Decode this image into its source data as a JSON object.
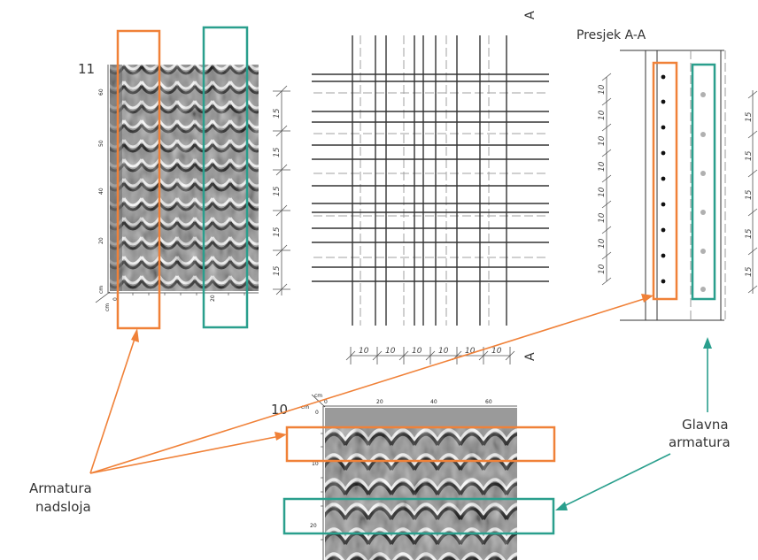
{
  "colors": {
    "overlay": "#f08138",
    "main": "#2a9f8d",
    "line": "#222222",
    "dash": "#999999"
  },
  "scan_top": {
    "number": "11",
    "ticks_left": [
      "60",
      "50",
      "40",
      "20",
      "cm"
    ],
    "ticks_bottom": [
      "cm",
      "0",
      "20"
    ]
  },
  "scan_bottom": {
    "number": "10",
    "ticks_top": [
      "cm",
      "0",
      "20",
      "40",
      "60"
    ],
    "ticks_left": [
      "cm",
      "0",
      "10",
      "20"
    ]
  },
  "plan": {
    "section_marker_top": "A",
    "section_marker_bottom": "A",
    "spacing_vertical": [
      "15",
      "15",
      "15",
      "15",
      "15"
    ],
    "spacing_horizontal": [
      "10",
      "10",
      "10",
      "10",
      "10",
      "10"
    ]
  },
  "section": {
    "title": "Presjek A-A",
    "spacing_left": [
      "10",
      "10",
      "10",
      "10",
      "10",
      "10",
      "10",
      "10"
    ],
    "spacing_right": [
      "15",
      "15",
      "15",
      "15",
      "15"
    ]
  },
  "labels": {
    "overlay_line1": "Armatura",
    "overlay_line2": "nadsloja",
    "main_line1": "Glavna",
    "main_line2": "armatura"
  }
}
